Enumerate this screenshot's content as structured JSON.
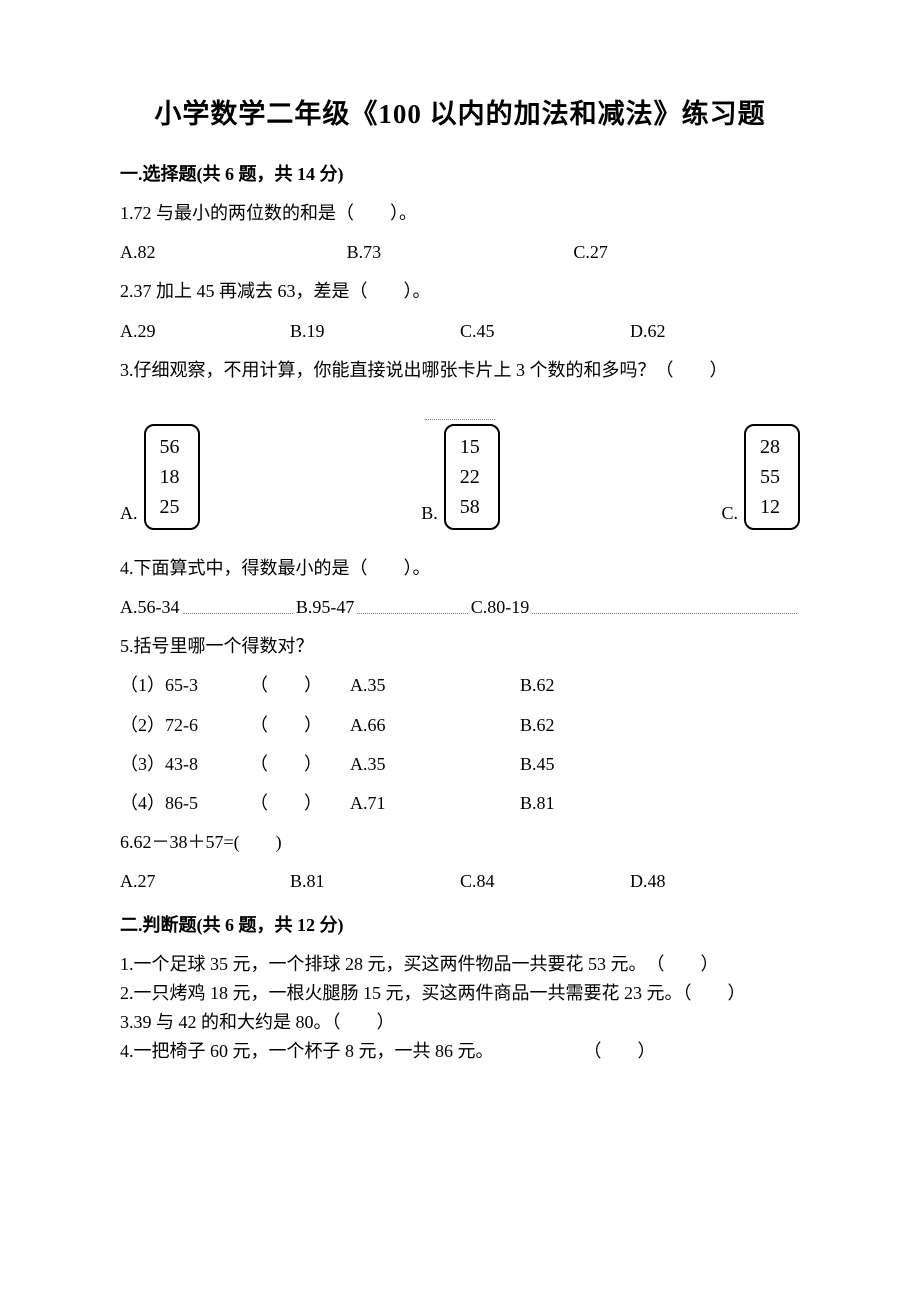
{
  "title": "小学数学二年级《100 以内的加法和减法》练习题",
  "section1": {
    "head": "一.选择题(共 6 题，共 14 分)",
    "q1": {
      "text": "1.72 与最小的两位数的和是（　　）。",
      "A": "A.82",
      "B": "B.73",
      "C": "C.27"
    },
    "q2": {
      "text": "2.37 加上 45 再减去 63，差是（　　）。",
      "A": "A.29",
      "B": "B.19",
      "C": "C.45",
      "D": "D.62"
    },
    "q3": {
      "text": "3.仔细观察，不用计算，你能直接说出哪张卡片上 3 个数的和多吗？（　　）",
      "cardA": {
        "label": "A.",
        "n1": "56",
        "n2": "18",
        "n3": "25"
      },
      "cardB": {
        "label": "B.",
        "n1": "15",
        "n2": "22",
        "n3": "58"
      },
      "cardC": {
        "label": "C.",
        "n1": "28",
        "n2": "55",
        "n3": "12"
      }
    },
    "q4": {
      "text": "4.下面算式中，得数最小的是（　　）。",
      "A": "A.56-34",
      "B": "B.95-47",
      "C": "C.80-19"
    },
    "q5": {
      "text": "5.括号里哪一个得数对？",
      "r1": {
        "c1": "（1）65-3",
        "c2": "（　　）",
        "c3": "A.35",
        "c4": "B.62"
      },
      "r2": {
        "c1": "（2）72-6",
        "c2": "（　　）",
        "c3": "A.66",
        "c4": "B.62"
      },
      "r3": {
        "c1": "（3）43-8",
        "c2": "（　　）",
        "c3": "A.35",
        "c4": "B.45"
      },
      "r4": {
        "c1": "（4）86-5",
        "c2": "（　　）",
        "c3": "A.71",
        "c4": "B.81"
      }
    },
    "q6": {
      "text": "6.62－38＋57=(　　)",
      "A": "A.27",
      "B": "B.81",
      "C": "C.84",
      "D": "D.48"
    }
  },
  "section2": {
    "head": "二.判断题(共 6 题，共 12 分)",
    "q1": "1.一个足球 35 元，一个排球 28 元，买这两件物品一共要花 53 元。　（　　）",
    "q2": "2.一只烤鸡 18 元，一根火腿肠 15 元，买这两件商品一共需要花 23 元。（　　）",
    "q3": "3.39 与 42 的和大约是 80。（　　）",
    "q4": "4.一把椅子 60 元，一个杯子 8 元，一共 86 元。　　　　　　（　　）"
  }
}
